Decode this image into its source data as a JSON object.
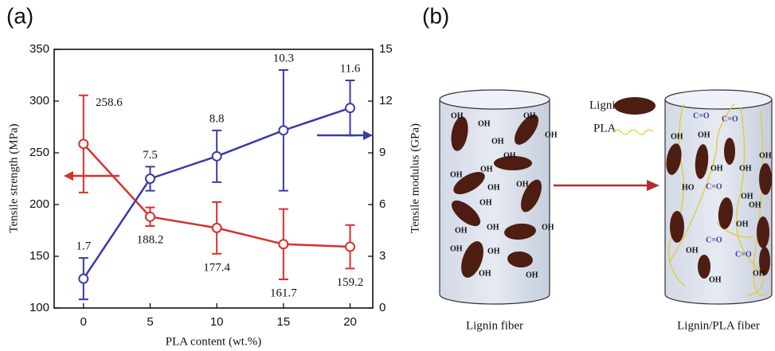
{
  "chart_data": {
    "type": "line",
    "panel_label": "(a)",
    "x": [
      0,
      5,
      10,
      15,
      20
    ],
    "xlim": [
      -2.2,
      21.7
    ],
    "xticks": [
      0,
      5,
      10,
      15,
      20
    ],
    "xlabel": "PLA content (wt.%)",
    "ylabel": "Tensile strength (MPa)",
    "y2label": "Tensile modulus (GPa)",
    "ylim": [
      100,
      350
    ],
    "yticks": [
      100,
      150,
      200,
      250,
      300,
      350
    ],
    "y2lim": [
      0,
      15
    ],
    "y2ticks": [
      0,
      3,
      6,
      9,
      12,
      15
    ],
    "series": [
      {
        "color": "#d9302c",
        "values": [
          258.6,
          188.2,
          177.4,
          161.7,
          159.2
        ],
        "errors": [
          47,
          9,
          25,
          34,
          21
        ]
      },
      {
        "color": "#3b3ba6",
        "axis": "y2",
        "values": [
          1.7,
          7.5,
          8.8,
          10.3,
          11.6
        ],
        "errors": [
          1.2,
          0.7,
          1.5,
          3.5,
          1.6
        ]
      }
    ]
  },
  "diagram": {
    "panel_label": "(b)",
    "legend": {
      "lignin": "Lignin",
      "pla": "PLA"
    },
    "left": {
      "caption": "Lignin fiber",
      "labels": [
        "OH",
        "OH",
        "OH",
        "OH",
        "OH",
        "OH",
        "OH",
        "OH",
        "OH",
        "OH",
        "OH",
        "OH",
        "OH",
        "OH",
        "OH",
        "OH",
        "OH",
        "OH"
      ]
    },
    "right": {
      "caption": "Lignin/PLA fiber",
      "labels": [
        "C=O",
        "C=O",
        "OH",
        "OH",
        "OH",
        "OH",
        "OH",
        "HO",
        "C=O",
        "OH",
        "OH",
        "OH",
        "C=O",
        "OH",
        "C=O",
        "OH",
        "OH"
      ]
    }
  }
}
